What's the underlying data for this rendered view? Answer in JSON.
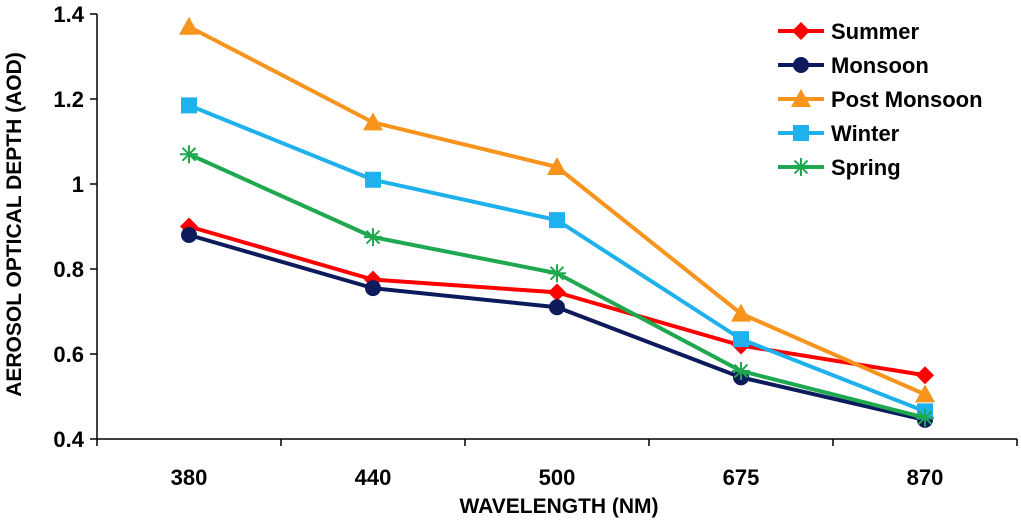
{
  "chart_data": {
    "type": "line",
    "title": "",
    "xlabel": "WAVELENGTH (NM)",
    "ylabel": "AEROSOL OPTICAL DEPTH (AOD)",
    "categories": [
      "380",
      "440",
      "500",
      "675",
      "870"
    ],
    "ylim": [
      0.4,
      1.4
    ],
    "yticks": [
      0.4,
      0.6,
      0.8,
      1,
      1.2,
      1.4
    ],
    "ytick_labels": [
      "0.4",
      "0.6",
      "0.8",
      "1",
      "1.2",
      "1.4"
    ],
    "grid": false,
    "legend_position": "top-right",
    "series": [
      {
        "name": "Summer",
        "color": "#ff0000",
        "marker": "diamond",
        "values": [
          0.9,
          0.775,
          0.745,
          0.62,
          0.55
        ]
      },
      {
        "name": "Monsoon",
        "color": "#0d1a5c",
        "marker": "circle",
        "values": [
          0.88,
          0.755,
          0.71,
          0.545,
          0.445
        ]
      },
      {
        "name": "Post Monsoon",
        "color": "#f7941d",
        "marker": "triangle",
        "values": [
          1.37,
          1.145,
          1.04,
          0.695,
          0.505
        ]
      },
      {
        "name": "Winter",
        "color": "#1fb1ec",
        "marker": "square",
        "values": [
          1.185,
          1.01,
          0.915,
          0.635,
          0.465
        ]
      },
      {
        "name": "Spring",
        "color": "#1fa84f",
        "marker": "star",
        "values": [
          1.07,
          0.875,
          0.79,
          0.56,
          0.45
        ]
      }
    ]
  }
}
